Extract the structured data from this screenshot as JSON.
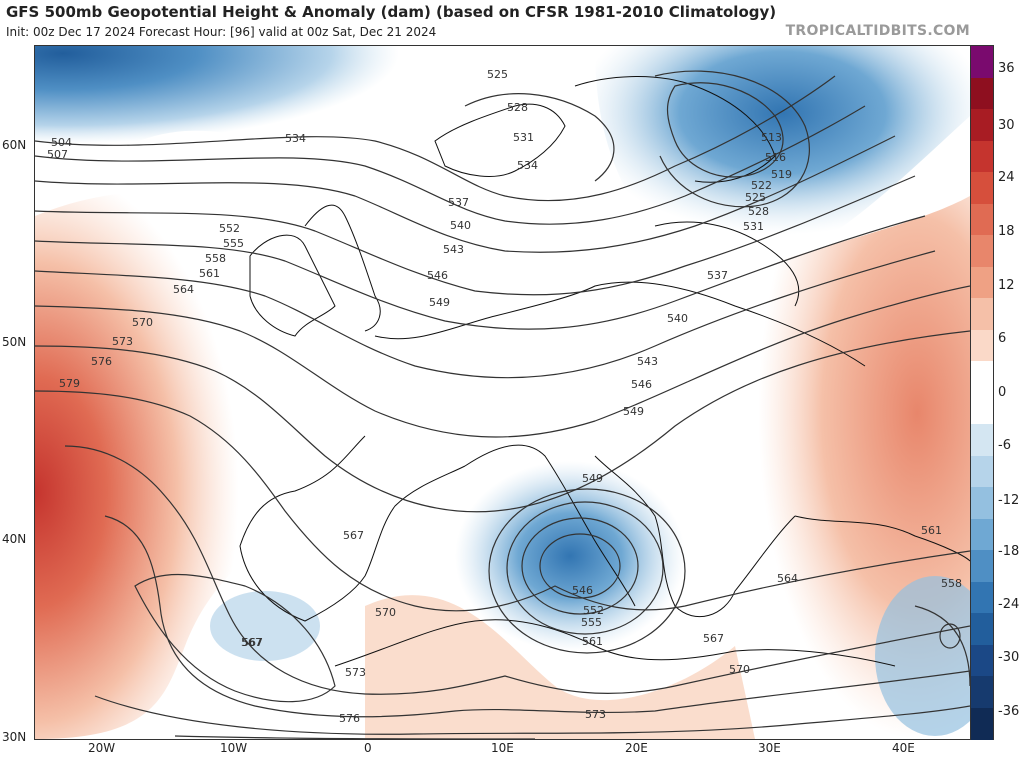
{
  "header": {
    "title": "GFS 500mb Geopotential Height & Anomaly (dam) (based on CFSR 1981-2010 Climatology)",
    "subtitle": "Init: 00z Dec 17 2024   Forecast Hour: [96]   valid at 00z Sat, Dec 21 2024",
    "watermark": "TROPICALTIDBITS.COM"
  },
  "axes": {
    "lat_labels": [
      "60N",
      "50N",
      "40N",
      "30N"
    ],
    "lon_labels": [
      "20W",
      "10W",
      "0",
      "10E",
      "20E",
      "30E",
      "40E"
    ]
  },
  "colorbar": {
    "labels": [
      "36",
      "30",
      "24",
      "18",
      "12",
      "6",
      "0",
      "-6",
      "-12",
      "-18",
      "-24",
      "-30",
      "-36"
    ],
    "colors": [
      "#7a0a6e",
      "#8e0f1f",
      "#a81c23",
      "#c5342e",
      "#d64f3c",
      "#e06b53",
      "#e8866b",
      "#efa184",
      "#f5c0a8",
      "#fad9c8",
      "#ffffff",
      "#ffffff",
      "#d4e6f2",
      "#b6d4ea",
      "#94c0e0",
      "#6fa8d3",
      "#4f8fc4",
      "#3275b2",
      "#225e9c",
      "#1b4886",
      "#163a6e",
      "#102b55"
    ]
  },
  "contours": {
    "labels": [
      "504",
      "507",
      "525",
      "528",
      "531",
      "534",
      "534",
      "537",
      "540",
      "543",
      "546",
      "549",
      "552",
      "555",
      "558",
      "561",
      "564",
      "570",
      "573",
      "576",
      "579",
      "513",
      "516",
      "519",
      "522",
      "525",
      "528",
      "531",
      "537",
      "540",
      "543",
      "546",
      "549",
      "549",
      "546",
      "552",
      "555",
      "561",
      "567",
      "567",
      "570",
      "573",
      "576",
      "573",
      "570",
      "567",
      "564",
      "561",
      "558",
      "567"
    ]
  }
}
